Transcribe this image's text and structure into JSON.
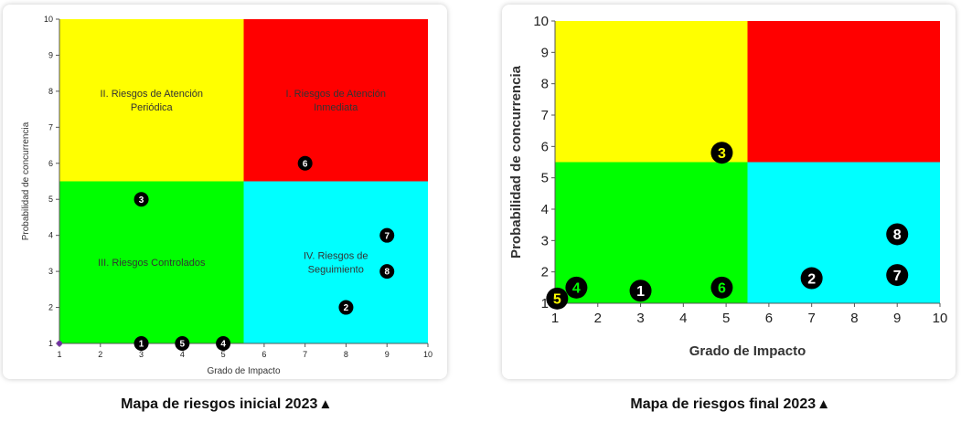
{
  "chart_data": [
    {
      "type": "scatter",
      "title": "",
      "xlabel": "Grado de Impacto",
      "ylabel": "Probabilidad de concurrencia",
      "xlim": [
        1,
        10
      ],
      "ylim": [
        1,
        10
      ],
      "xticks": [
        "1",
        "2",
        "3",
        "4",
        "5",
        "6",
        "7",
        "8",
        "9",
        "10"
      ],
      "yticks": [
        "1",
        "2",
        "3",
        "4",
        "5",
        "6",
        "7",
        "8",
        "9",
        "10"
      ],
      "grid": false,
      "quadrants": [
        {
          "name": "II. Riesgos de Atención Periódica",
          "lines": [
            "II. Riesgos de Atención",
            "Periódica"
          ],
          "color": "#ffff00",
          "x": [
            1,
            5.5
          ],
          "y": [
            5.5,
            10
          ]
        },
        {
          "name": "I. Riesgos de Atención Inmediata",
          "lines": [
            "I. Riesgos de Atención",
            "Inmediata"
          ],
          "color": "#ff0000",
          "x": [
            5.5,
            10
          ],
          "y": [
            5.5,
            10
          ]
        },
        {
          "name": "III. Riesgos Controlados",
          "lines": [
            "III. Riesgos Controlados"
          ],
          "color": "#00ff00",
          "x": [
            1,
            5.5
          ],
          "y": [
            1,
            5.5
          ]
        },
        {
          "name": "IV. Riesgos de Seguimiento",
          "lines": [
            "IV. Riesgos de",
            "Seguimiento"
          ],
          "color": "#00ffff",
          "x": [
            5.5,
            10
          ],
          "y": [
            1,
            5.5
          ]
        }
      ],
      "points": [
        {
          "label": "1",
          "x": 3,
          "y": 1
        },
        {
          "label": "2",
          "x": 8,
          "y": 2
        },
        {
          "label": "3",
          "x": 3,
          "y": 5
        },
        {
          "label": "4",
          "x": 5,
          "y": 1
        },
        {
          "label": "5",
          "x": 4,
          "y": 1
        },
        {
          "label": "6",
          "x": 7,
          "y": 6
        },
        {
          "label": "7",
          "x": 9,
          "y": 4
        },
        {
          "label": "8",
          "x": 9,
          "y": 3
        }
      ],
      "point_style": {
        "fill": "#000000",
        "text": "#ffffff"
      },
      "origin_marker": {
        "x": 1,
        "y": 1,
        "color": "#7030a0"
      },
      "caption": "Mapa de riesgos inicial 2023 ▴"
    },
    {
      "type": "scatter",
      "title": "",
      "xlabel": "Grado de Impacto",
      "ylabel": "Probabilidad de concurrencia",
      "xlim": [
        1,
        10
      ],
      "ylim": [
        1,
        10
      ],
      "xticks": [
        "1",
        "2",
        "3",
        "4",
        "5",
        "6",
        "7",
        "8",
        "9",
        "10"
      ],
      "yticks": [
        "1",
        "2",
        "3",
        "4",
        "5",
        "6",
        "7",
        "8",
        "9",
        "10"
      ],
      "grid": false,
      "quadrants": [
        {
          "color": "#ffff00",
          "x": [
            1,
            5.5
          ],
          "y": [
            5.5,
            10
          ]
        },
        {
          "color": "#ff0000",
          "x": [
            5.5,
            10
          ],
          "y": [
            5.5,
            10
          ]
        },
        {
          "color": "#00ff00",
          "x": [
            1,
            5.5
          ],
          "y": [
            1,
            5.5
          ]
        },
        {
          "color": "#00ffff",
          "x": [
            5.5,
            10
          ],
          "y": [
            1,
            5.5
          ]
        }
      ],
      "points": [
        {
          "label": "1",
          "x": 3,
          "y": 1.4,
          "text_color": "#ffffff"
        },
        {
          "label": "2",
          "x": 7,
          "y": 1.8,
          "text_color": "#ffffff"
        },
        {
          "label": "3",
          "x": 4.9,
          "y": 5.8,
          "text_color": "#ffff00"
        },
        {
          "label": "4",
          "x": 1.5,
          "y": 1.5,
          "text_color": "#00ff00"
        },
        {
          "label": "5",
          "x": 1.05,
          "y": 1.15,
          "text_color": "#ffff00"
        },
        {
          "label": "6",
          "x": 4.9,
          "y": 1.5,
          "text_color": "#00ff00"
        },
        {
          "label": "7",
          "x": 9,
          "y": 1.9,
          "text_color": "#ffffff"
        },
        {
          "label": "8",
          "x": 9,
          "y": 3.2,
          "text_color": "#ffffff"
        }
      ],
      "point_style": {
        "fill": "#000000"
      },
      "caption": "Mapa de riesgos final 2023 ▴"
    }
  ]
}
